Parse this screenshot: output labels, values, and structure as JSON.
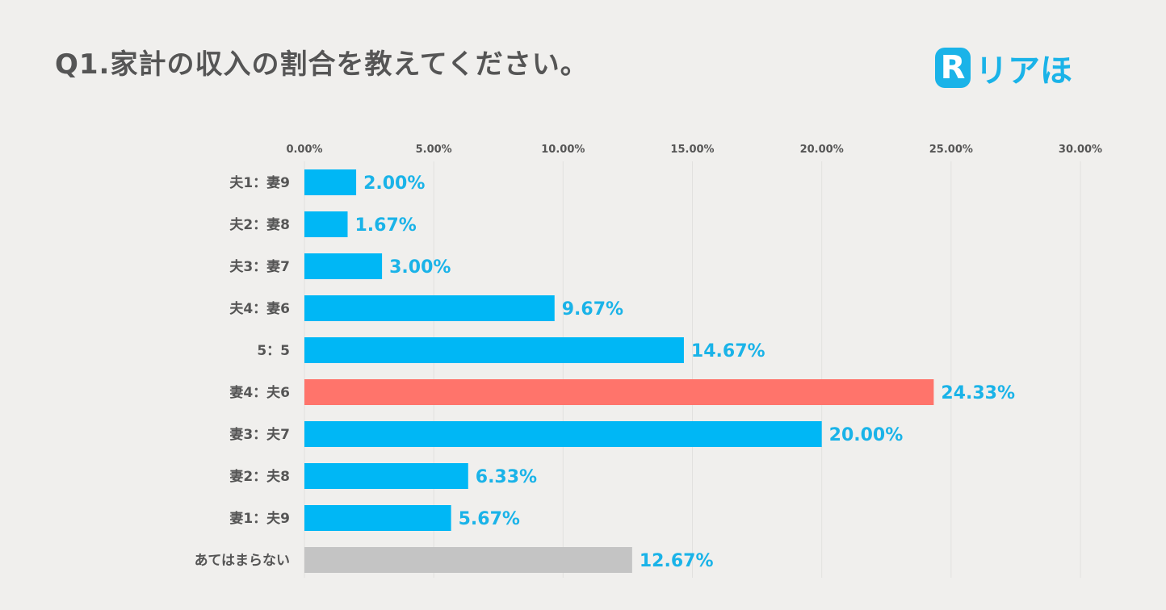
{
  "header": {
    "title": "Q1.家計の収入の割合を教えてください。",
    "logo_mark": "R",
    "logo_text": "リアほ"
  },
  "colors": {
    "bar_default": "#00b7f5",
    "bar_highlight": "#ff746b",
    "bar_other": "#c4c4c4",
    "value_label": "#1ab3e8",
    "logo": "#1ab3e8"
  },
  "chart_data": {
    "type": "bar",
    "orientation": "horizontal",
    "title": "Q1.家計の収入の割合を教えてください。",
    "xlabel": "",
    "ylabel": "",
    "xlim": [
      0,
      30
    ],
    "x_ticks": [
      0,
      5,
      10,
      15,
      20,
      25,
      30
    ],
    "x_tick_labels": [
      "0.00%",
      "5.00%",
      "10.00%",
      "15.00%",
      "20.00%",
      "25.00%",
      "30.00%"
    ],
    "grid": true,
    "categories": [
      "夫1：妻9",
      "夫2：妻8",
      "夫3：妻7",
      "夫4：妻6",
      "5：5",
      "妻4：夫6",
      "妻3：夫7",
      "妻2：夫8",
      "妻1：夫9",
      "あてはまらない"
    ],
    "values": [
      2.0,
      1.67,
      3.0,
      9.67,
      14.67,
      24.33,
      20.0,
      6.33,
      5.67,
      12.67
    ],
    "value_labels": [
      "2.00%",
      "1.67%",
      "3.00%",
      "9.67%",
      "14.67%",
      "24.33%",
      "20.00%",
      "6.33%",
      "5.67%",
      "12.67%"
    ],
    "bar_color_keys": [
      "default",
      "default",
      "default",
      "default",
      "default",
      "highlight",
      "default",
      "default",
      "default",
      "other"
    ]
  }
}
